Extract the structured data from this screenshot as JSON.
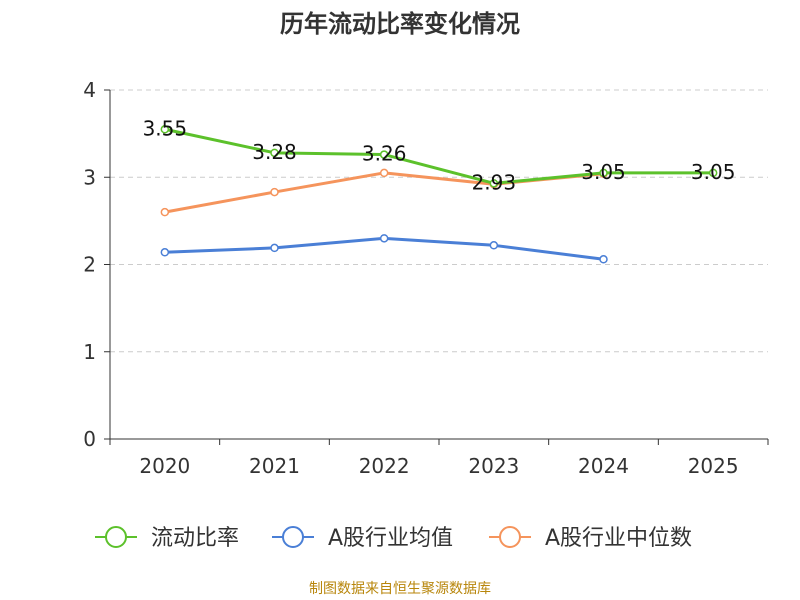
{
  "chart_data": {
    "type": "line",
    "title": "历年流动比率变化情况",
    "categories": [
      "2020",
      "2021",
      "2022",
      "2023",
      "2024",
      "2025"
    ],
    "y_ticks": [
      "0",
      "1",
      "2",
      "3",
      "4"
    ],
    "ylim": [
      0,
      4
    ],
    "grid": true,
    "legend_position": "bottom",
    "series": [
      {
        "name": "流动比率",
        "color": "#5cc12b",
        "values": [
          3.55,
          3.28,
          3.26,
          2.93,
          3.05,
          3.05
        ],
        "labels": [
          "3.55",
          "3.28",
          "3.26",
          "2.93",
          "3.05",
          "3.05"
        ],
        "show_labels": true
      },
      {
        "name": "A股行业均值",
        "color": "#4a7fd6",
        "values": [
          2.14,
          2.19,
          2.3,
          2.22,
          2.06,
          null
        ],
        "show_labels": false
      },
      {
        "name": "A股行业中位数",
        "color": "#f5945c",
        "values": [
          2.6,
          2.83,
          3.05,
          2.92,
          3.04,
          null
        ],
        "show_labels": false
      }
    ]
  },
  "source_note": "制图数据来自恒生聚源数据库"
}
